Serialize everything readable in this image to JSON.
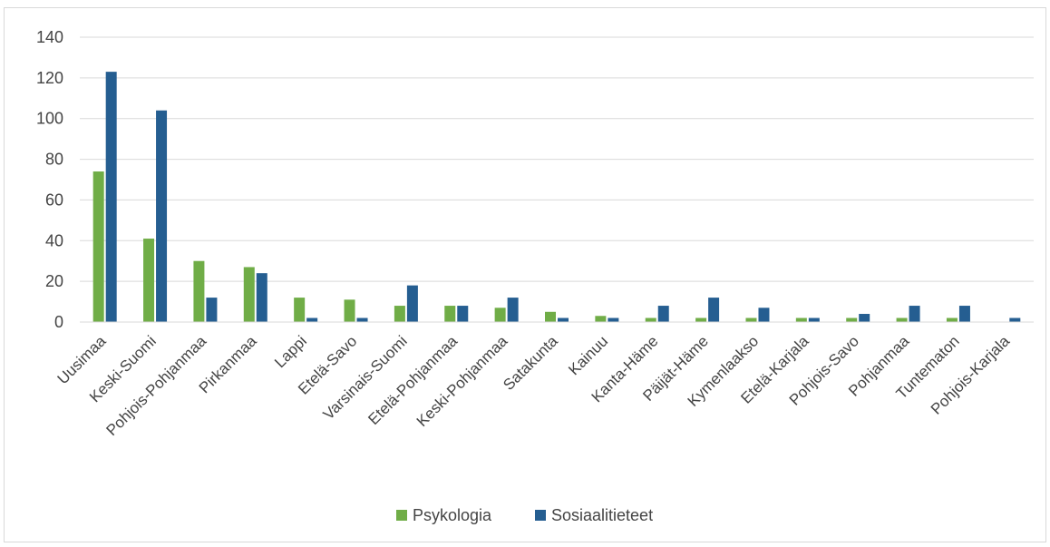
{
  "chart_data": {
    "type": "bar",
    "categories": [
      "Uusimaa",
      "Keski-Suomi",
      "Pohjois-Pohjanmaa",
      "Pirkanmaa",
      "Lappi",
      "Etelä-Savo",
      "Varsinais-Suomi",
      "Etelä-Pohjanmaa",
      "Keski-Pohjanmaa",
      "Satakunta",
      "Kainuu",
      "Kanta-Häme",
      "Päijät-Häme",
      "Kymenlaakso",
      "Etelä-Karjala",
      "Pohjois-Savo",
      "Pohjanmaa",
      "Tuntematon",
      "Pohjois-Karjala"
    ],
    "series": [
      {
        "name": "Psykologia",
        "color": "#70ad47",
        "values": [
          74,
          41,
          30,
          27,
          12,
          11,
          8,
          8,
          7,
          5,
          3,
          2,
          2,
          2,
          2,
          2,
          2,
          2,
          0
        ]
      },
      {
        "name": "Sosiaalitieteet",
        "color": "#255e91",
        "values": [
          123,
          104,
          12,
          24,
          2,
          2,
          18,
          8,
          12,
          2,
          2,
          8,
          12,
          7,
          2,
          4,
          8,
          8,
          2
        ]
      }
    ],
    "ylim": [
      0,
      140
    ],
    "yticks": [
      0,
      20,
      40,
      60,
      80,
      100,
      120,
      140
    ],
    "grid": true,
    "legend_position": "bottom",
    "title": "",
    "xlabel": "",
    "ylabel": ""
  }
}
